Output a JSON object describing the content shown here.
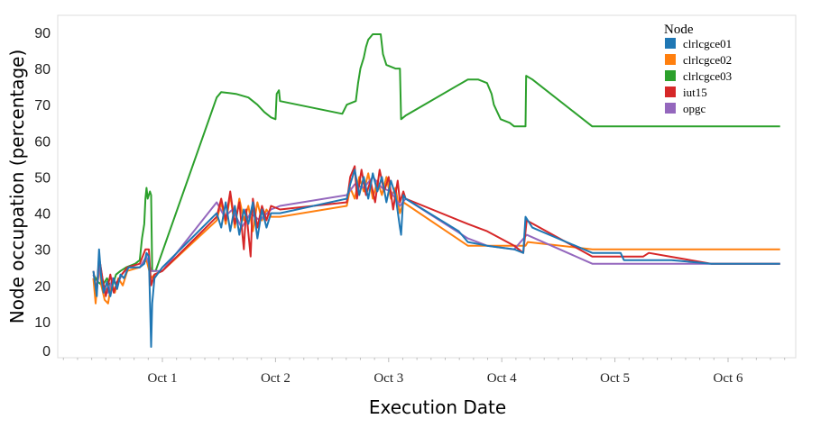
{
  "chart_data": {
    "type": "line",
    "title": "",
    "xlabel": "Execution Date",
    "ylabel": "Node occupation (percentage)",
    "x_units": "days since Oct 1 00:00",
    "xlim": [
      -0.93,
      5.59
    ],
    "ylim": [
      0,
      95
    ],
    "yticks": [
      0,
      10,
      20,
      30,
      40,
      50,
      60,
      70,
      80,
      90
    ],
    "xticks": [
      {
        "value": 0,
        "label": "Oct 1"
      },
      {
        "value": 1,
        "label": "Oct 2"
      },
      {
        "value": 2,
        "label": "Oct 3"
      },
      {
        "value": 3,
        "label": "Oct 4"
      },
      {
        "value": 4,
        "label": "Oct 5"
      },
      {
        "value": 5,
        "label": "Oct 6"
      }
    ],
    "grid": false,
    "legend": {
      "title": "Node",
      "placement": "top-right"
    },
    "series": [
      {
        "name": "clrlcgce03",
        "color": "#2ca02c",
        "points": [
          [
            -0.61,
            23
          ],
          [
            -0.57,
            21
          ],
          [
            -0.53,
            20
          ],
          [
            -0.49,
            22
          ],
          [
            -0.45,
            19
          ],
          [
            -0.41,
            23
          ],
          [
            -0.37,
            24
          ],
          [
            -0.32,
            25
          ],
          [
            -0.24,
            26
          ],
          [
            -0.2,
            27
          ],
          [
            -0.18,
            33
          ],
          [
            -0.16,
            37
          ],
          [
            -0.15,
            44
          ],
          [
            -0.14,
            47
          ],
          [
            -0.13,
            44
          ],
          [
            -0.11,
            46
          ],
          [
            -0.1,
            45
          ],
          [
            -0.09,
            24
          ],
          [
            -0.06,
            24
          ],
          [
            0.48,
            72
          ],
          [
            0.52,
            73.5
          ],
          [
            0.65,
            73
          ],
          [
            0.76,
            72
          ],
          [
            0.84,
            70
          ],
          [
            0.9,
            68
          ],
          [
            0.96,
            66.5
          ],
          [
            1.0,
            66
          ],
          [
            1.01,
            73
          ],
          [
            1.03,
            74
          ],
          [
            1.04,
            71
          ],
          [
            1.59,
            67.5
          ],
          [
            1.63,
            70
          ],
          [
            1.71,
            71
          ],
          [
            1.73,
            76
          ],
          [
            1.75,
            80
          ],
          [
            1.78,
            83
          ],
          [
            1.8,
            86
          ],
          [
            1.82,
            88
          ],
          [
            1.86,
            89.5
          ],
          [
            1.93,
            89.5
          ],
          [
            1.95,
            84
          ],
          [
            1.98,
            81
          ],
          [
            2.06,
            80
          ],
          [
            2.1,
            80
          ],
          [
            2.11,
            66
          ],
          [
            2.15,
            67
          ],
          [
            2.7,
            77
          ],
          [
            2.79,
            77
          ],
          [
            2.87,
            76
          ],
          [
            2.91,
            73
          ],
          [
            2.93,
            70
          ],
          [
            2.99,
            66
          ],
          [
            3.07,
            65
          ],
          [
            3.11,
            64
          ],
          [
            3.21,
            64
          ],
          [
            3.215,
            78
          ],
          [
            3.27,
            77
          ],
          [
            3.8,
            64
          ],
          [
            5.46,
            64
          ]
        ]
      },
      {
        "name": "clrlcgce02",
        "color": "#ff7f0e",
        "points": [
          [
            -0.61,
            22
          ],
          [
            -0.59,
            15
          ],
          [
            -0.56,
            27
          ],
          [
            -0.54,
            20
          ],
          [
            -0.51,
            16
          ],
          [
            -0.48,
            15
          ],
          [
            -0.45,
            21
          ],
          [
            -0.42,
            18
          ],
          [
            -0.39,
            22
          ],
          [
            -0.35,
            20
          ],
          [
            -0.31,
            24
          ],
          [
            -0.2,
            25
          ],
          [
            -0.14,
            27
          ],
          [
            -0.1,
            22
          ],
          [
            -0.07,
            23
          ],
          [
            0,
            24
          ],
          [
            0.48,
            38
          ],
          [
            0.52,
            43
          ],
          [
            0.56,
            37
          ],
          [
            0.6,
            45
          ],
          [
            0.64,
            36
          ],
          [
            0.68,
            44
          ],
          [
            0.72,
            38
          ],
          [
            0.76,
            42
          ],
          [
            0.8,
            35
          ],
          [
            0.84,
            43
          ],
          [
            0.88,
            38
          ],
          [
            0.92,
            41
          ],
          [
            0.96,
            39
          ],
          [
            1.04,
            39
          ],
          [
            1.63,
            42
          ],
          [
            1.66,
            47
          ],
          [
            1.7,
            44
          ],
          [
            1.74,
            50
          ],
          [
            1.78,
            46
          ],
          [
            1.82,
            51
          ],
          [
            1.86,
            44
          ],
          [
            1.9,
            49
          ],
          [
            1.94,
            45
          ],
          [
            1.98,
            50
          ],
          [
            2.02,
            44
          ],
          [
            2.06,
            47
          ],
          [
            2.1,
            40
          ],
          [
            2.13,
            43
          ],
          [
            2.7,
            31
          ],
          [
            3.21,
            31
          ],
          [
            3.23,
            32
          ],
          [
            3.8,
            30
          ],
          [
            5.46,
            30
          ]
        ]
      },
      {
        "name": "opgc",
        "color": "#9467bd",
        "points": [
          [
            -0.61,
            23
          ],
          [
            -0.58,
            19
          ],
          [
            -0.55,
            26
          ],
          [
            -0.52,
            20
          ],
          [
            -0.48,
            18
          ],
          [
            -0.44,
            22
          ],
          [
            -0.4,
            20
          ],
          [
            -0.36,
            23
          ],
          [
            -0.3,
            25
          ],
          [
            -0.2,
            25
          ],
          [
            -0.14,
            28
          ],
          [
            -0.1,
            24
          ],
          [
            0,
            24
          ],
          [
            0.48,
            43
          ],
          [
            0.55,
            39
          ],
          [
            0.62,
            41
          ],
          [
            0.7,
            36
          ],
          [
            0.78,
            40
          ],
          [
            0.86,
            38
          ],
          [
            0.96,
            41
          ],
          [
            1.04,
            42
          ],
          [
            1.63,
            45
          ],
          [
            1.7,
            48
          ],
          [
            1.78,
            47
          ],
          [
            1.86,
            50
          ],
          [
            1.94,
            47
          ],
          [
            2.02,
            46
          ],
          [
            2.1,
            42
          ],
          [
            2.15,
            44
          ],
          [
            2.7,
            33
          ],
          [
            2.87,
            31
          ],
          [
            3.11,
            30
          ],
          [
            3.22,
            34
          ],
          [
            3.8,
            26
          ],
          [
            5.46,
            26
          ]
        ]
      },
      {
        "name": "iut15",
        "color": "#d62728",
        "points": [
          [
            -0.61,
            24
          ],
          [
            -0.58,
            18
          ],
          [
            -0.56,
            28
          ],
          [
            -0.53,
            22
          ],
          [
            -0.5,
            17
          ],
          [
            -0.46,
            23
          ],
          [
            -0.43,
            18
          ],
          [
            -0.4,
            21
          ],
          [
            -0.36,
            23
          ],
          [
            -0.31,
            25
          ],
          [
            -0.2,
            26
          ],
          [
            -0.15,
            30
          ],
          [
            -0.12,
            30
          ],
          [
            -0.1,
            20
          ],
          [
            -0.07,
            23
          ],
          [
            0,
            24
          ],
          [
            0.48,
            39
          ],
          [
            0.52,
            44
          ],
          [
            0.56,
            38
          ],
          [
            0.6,
            46
          ],
          [
            0.64,
            37
          ],
          [
            0.68,
            43
          ],
          [
            0.72,
            30
          ],
          [
            0.74,
            41
          ],
          [
            0.78,
            28
          ],
          [
            0.8,
            44
          ],
          [
            0.84,
            36
          ],
          [
            0.88,
            42
          ],
          [
            0.92,
            38
          ],
          [
            0.96,
            42
          ],
          [
            1.04,
            41
          ],
          [
            1.63,
            43
          ],
          [
            1.66,
            50
          ],
          [
            1.7,
            53
          ],
          [
            1.72,
            44
          ],
          [
            1.76,
            52
          ],
          [
            1.8,
            45
          ],
          [
            1.84,
            49
          ],
          [
            1.88,
            43
          ],
          [
            1.92,
            52
          ],
          [
            1.96,
            46
          ],
          [
            2.0,
            50
          ],
          [
            2.04,
            41
          ],
          [
            2.08,
            49
          ],
          [
            2.1,
            43
          ],
          [
            2.13,
            46
          ],
          [
            2.15,
            44
          ],
          [
            2.7,
            37
          ],
          [
            2.87,
            35
          ],
          [
            3.11,
            31
          ],
          [
            3.19,
            29
          ],
          [
            3.22,
            38
          ],
          [
            3.8,
            28
          ],
          [
            4.25,
            28
          ],
          [
            4.3,
            29
          ],
          [
            4.85,
            26
          ],
          [
            5.46,
            26
          ]
        ]
      },
      {
        "name": "clrlcgce01",
        "color": "#1f77b4",
        "points": [
          [
            -0.61,
            24
          ],
          [
            -0.58,
            17
          ],
          [
            -0.56,
            30
          ],
          [
            -0.54,
            22
          ],
          [
            -0.52,
            18
          ],
          [
            -0.49,
            21
          ],
          [
            -0.46,
            17
          ],
          [
            -0.43,
            22
          ],
          [
            -0.4,
            19
          ],
          [
            -0.37,
            23
          ],
          [
            -0.34,
            22
          ],
          [
            -0.3,
            25
          ],
          [
            -0.2,
            25
          ],
          [
            -0.16,
            26
          ],
          [
            -0.14,
            29
          ],
          [
            -0.12,
            28
          ],
          [
            -0.1,
            3
          ],
          [
            -0.09,
            15
          ],
          [
            -0.07,
            22
          ],
          [
            0,
            25
          ],
          [
            0.48,
            40
          ],
          [
            0.52,
            36
          ],
          [
            0.56,
            43
          ],
          [
            0.6,
            35
          ],
          [
            0.64,
            42
          ],
          [
            0.68,
            34
          ],
          [
            0.72,
            41
          ],
          [
            0.76,
            37
          ],
          [
            0.8,
            43
          ],
          [
            0.84,
            33
          ],
          [
            0.88,
            41
          ],
          [
            0.92,
            36
          ],
          [
            0.96,
            40
          ],
          [
            1.04,
            40
          ],
          [
            1.63,
            44
          ],
          [
            1.66,
            48
          ],
          [
            1.7,
            52
          ],
          [
            1.74,
            45
          ],
          [
            1.78,
            50
          ],
          [
            1.82,
            44
          ],
          [
            1.86,
            51
          ],
          [
            1.9,
            46
          ],
          [
            1.94,
            50
          ],
          [
            1.98,
            43
          ],
          [
            2.02,
            49
          ],
          [
            2.06,
            45
          ],
          [
            2.1,
            36
          ],
          [
            2.11,
            34
          ],
          [
            2.13,
            45
          ],
          [
            2.15,
            44
          ],
          [
            2.62,
            35
          ],
          [
            2.7,
            32
          ],
          [
            2.87,
            31
          ],
          [
            3.11,
            30
          ],
          [
            3.19,
            29
          ],
          [
            3.21,
            39
          ],
          [
            3.27,
            36
          ],
          [
            3.8,
            29
          ],
          [
            4.05,
            29
          ],
          [
            4.08,
            27
          ],
          [
            4.5,
            27
          ],
          [
            4.85,
            26
          ],
          [
            5.46,
            26
          ]
        ]
      }
    ]
  }
}
